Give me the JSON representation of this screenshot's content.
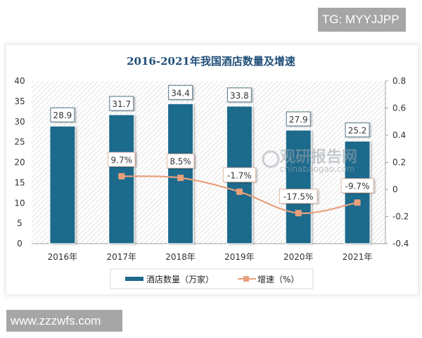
{
  "overlay": {
    "top_tag": "TG: MYYJJPP",
    "bottom_tag": "www.zzzwfs.com"
  },
  "watermark": {
    "cn": "观研报告网",
    "en": "chinabaogao.com"
  },
  "colors": {
    "bar": "#1f6a8c",
    "line": "#e8a07c",
    "marker": "#e8a07c",
    "title": "#1f4e79"
  },
  "chart_data": {
    "type": "bar",
    "title": "2016-2021年我国酒店数量及增速",
    "categories": [
      "2016年",
      "2017年",
      "2018年",
      "2019年",
      "2020年",
      "2021年"
    ],
    "series": [
      {
        "name": "酒店数量（万家）",
        "type": "bar",
        "axis": "left",
        "values": [
          28.9,
          31.7,
          34.4,
          33.8,
          27.9,
          25.2
        ],
        "labels": [
          "28.9",
          "31.7",
          "34.4",
          "33.8",
          "27.9",
          "25.2"
        ]
      },
      {
        "name": "增速（%）",
        "type": "line",
        "axis": "right",
        "values": [
          null,
          0.097,
          0.085,
          -0.017,
          -0.175,
          -0.097
        ],
        "labels": [
          "",
          "9.7%",
          "8.5%",
          "-1.7%",
          "-17.5%",
          "-9.7%"
        ]
      }
    ],
    "y_left": {
      "ylim": [
        0,
        40
      ],
      "ticks": [
        "0",
        "5",
        "10",
        "15",
        "20",
        "25",
        "30",
        "35",
        "40"
      ]
    },
    "y_right": {
      "ylim": [
        -0.4,
        0.8
      ],
      "ticks": [
        "-0.4",
        "-0.2",
        "0",
        "0.2",
        "0.4",
        "0.6",
        "0.8"
      ]
    },
    "xlabel": "",
    "ylabel": "",
    "legend": {
      "position": "bottom",
      "entries": [
        "酒店数量（万家）",
        "增速（%）"
      ]
    },
    "grid": false
  }
}
